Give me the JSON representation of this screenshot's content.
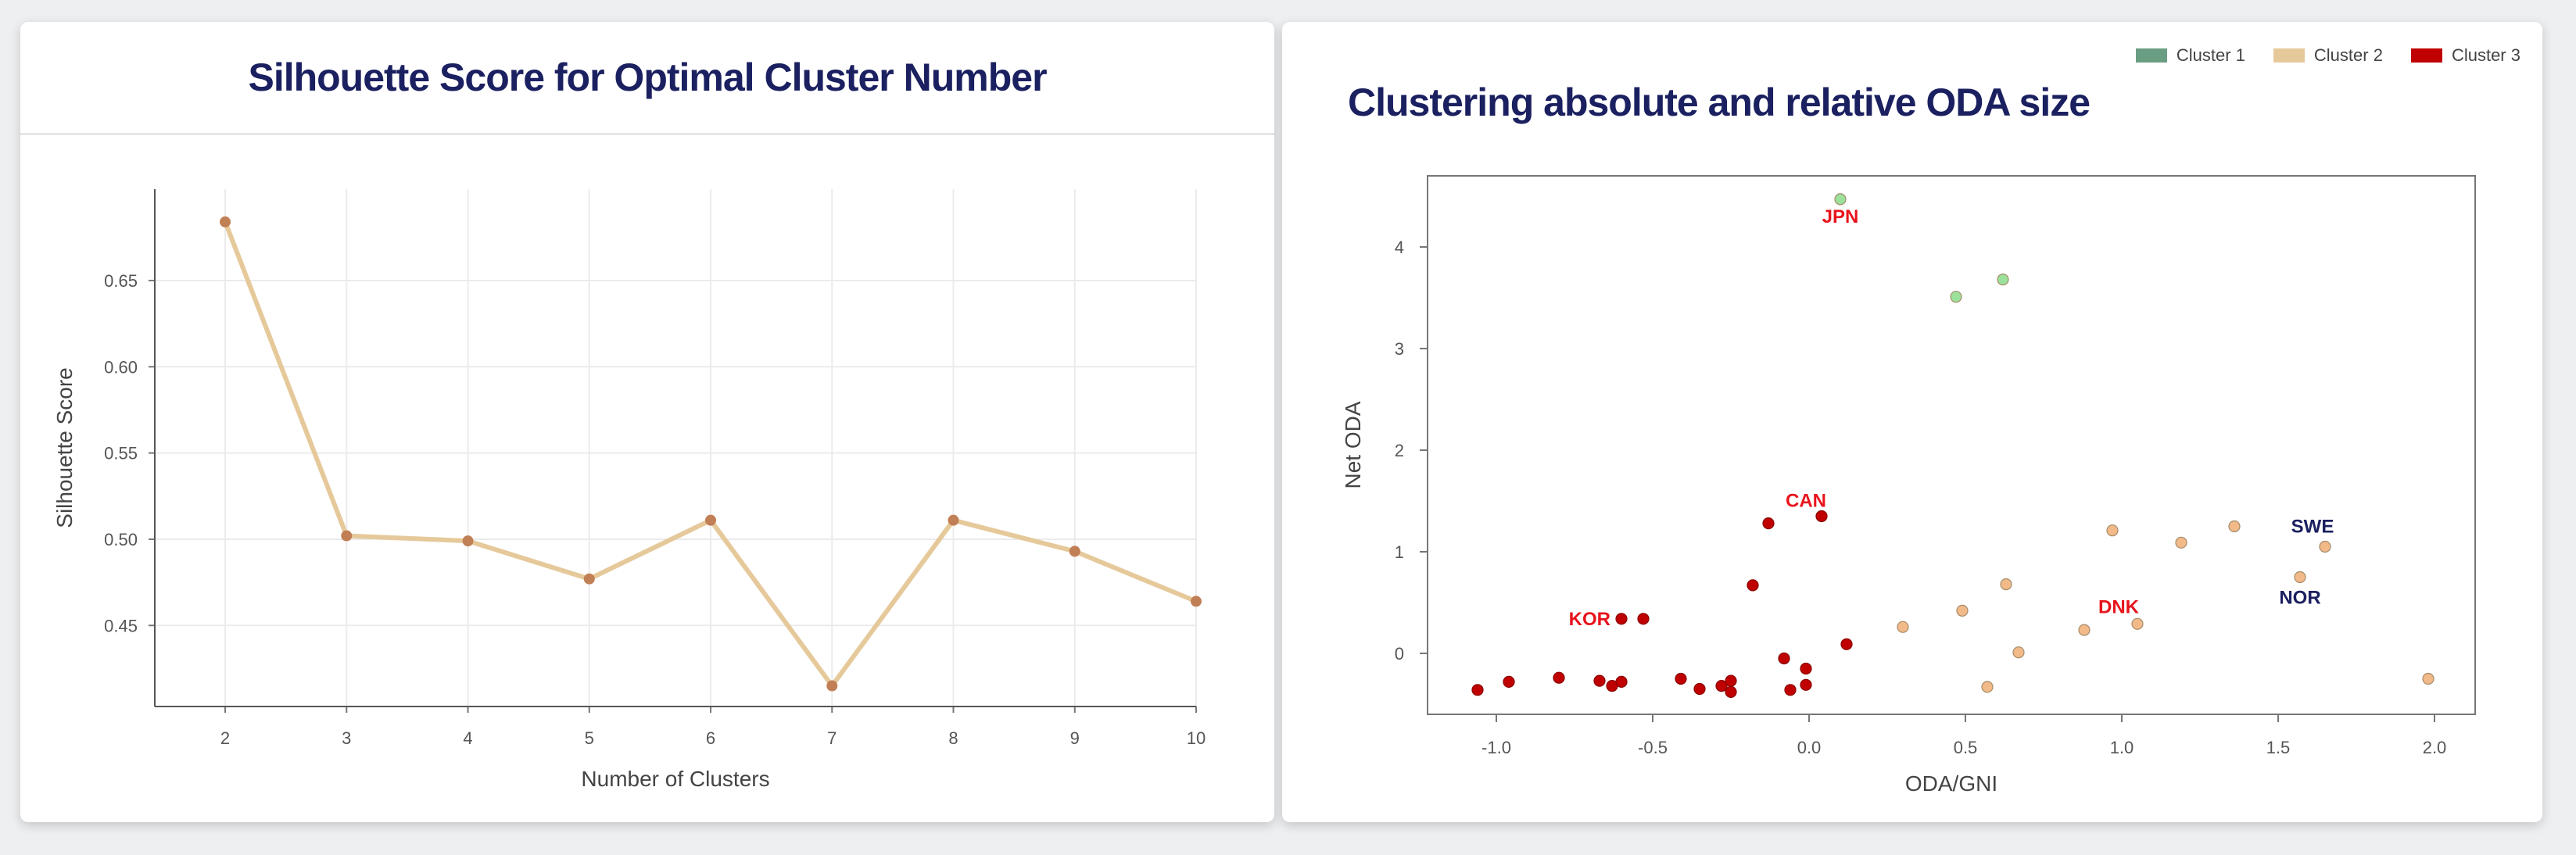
{
  "left_panel": {
    "title": "Silhouette Score for Optimal Cluster Number"
  },
  "right_panel": {
    "title": "Clustering absolute and relative ODA size"
  },
  "chart_data": [
    {
      "type": "line",
      "title": "Silhouette Score for Optimal Cluster Number",
      "xlabel": "Number of Clusters",
      "ylabel": "Silhouette Score",
      "x": [
        2,
        3,
        4,
        5,
        6,
        7,
        8,
        9,
        10
      ],
      "y": [
        0.684,
        0.502,
        0.499,
        0.477,
        0.511,
        0.415,
        0.511,
        0.493,
        0.464
      ],
      "xlim": [
        1.42,
        10.0
      ],
      "ylim": [
        0.403,
        0.703
      ],
      "xticks": [
        "2",
        "3",
        "4",
        "5",
        "6",
        "7",
        "8",
        "9",
        "10"
      ],
      "yticks": [
        "0.45",
        "0.50",
        "0.55",
        "0.60",
        "0.65"
      ],
      "ytick_values": [
        0.45,
        0.5,
        0.55,
        0.6,
        0.65
      ],
      "grid": true,
      "line_color": "#e6c99a",
      "marker_color": "#c17f55"
    },
    {
      "type": "scatter",
      "title": "Clustering absolute and relative ODA size",
      "xlabel": "ODA/GNI",
      "ylabel": "Net ODA",
      "xlim": [
        -1.22,
        2.13
      ],
      "ylim": [
        -0.6,
        4.7
      ],
      "xticks": [
        "-1.0",
        "-0.5",
        "0.0",
        "0.5",
        "1.0",
        "1.5",
        "2.0"
      ],
      "xtick_values": [
        -1.0,
        -0.5,
        0.0,
        0.5,
        1.0,
        1.5,
        2.0
      ],
      "yticks": [
        "0",
        "1",
        "2",
        "3",
        "4"
      ],
      "ytick_values": [
        0,
        1,
        2,
        3,
        4
      ],
      "legend_position": "top-right",
      "series": [
        {
          "name": "Cluster 1",
          "legend_color": "#6a9e82",
          "point_color": "#9be09b",
          "points": [
            [
              0.1,
              4.47
            ],
            [
              0.47,
              3.51
            ],
            [
              0.62,
              3.68
            ]
          ]
        },
        {
          "name": "Cluster 2",
          "legend_color": "#e6c99a",
          "point_color": "#f2b989",
          "points": [
            [
              0.3,
              0.26
            ],
            [
              0.49,
              0.42
            ],
            [
              0.57,
              -0.33
            ],
            [
              0.63,
              0.68
            ],
            [
              0.67,
              0.01
            ],
            [
              0.88,
              0.23
            ],
            [
              0.97,
              1.21
            ],
            [
              1.05,
              0.29
            ],
            [
              1.19,
              1.09
            ],
            [
              1.36,
              1.25
            ],
            [
              1.57,
              0.75
            ],
            [
              1.65,
              1.05
            ],
            [
              1.98,
              -0.25
            ]
          ]
        },
        {
          "name": "Cluster 3",
          "legend_color": "#c00000",
          "point_color": "#c00000",
          "points": [
            [
              -1.06,
              -0.36
            ],
            [
              -0.96,
              -0.28
            ],
            [
              -0.8,
              -0.24
            ],
            [
              -0.67,
              -0.27
            ],
            [
              -0.63,
              -0.32
            ],
            [
              -0.6,
              -0.28
            ],
            [
              -0.6,
              0.34
            ],
            [
              -0.53,
              0.34
            ],
            [
              -0.41,
              -0.25
            ],
            [
              -0.35,
              -0.35
            ],
            [
              -0.28,
              -0.32
            ],
            [
              -0.25,
              -0.27
            ],
            [
              -0.25,
              -0.38
            ],
            [
              -0.18,
              0.67
            ],
            [
              -0.13,
              1.28
            ],
            [
              -0.08,
              -0.05
            ],
            [
              -0.06,
              -0.36
            ],
            [
              -0.01,
              -0.15
            ],
            [
              -0.01,
              -0.31
            ],
            [
              0.04,
              1.35
            ],
            [
              0.12,
              0.09
            ]
          ]
        }
      ],
      "annotations": [
        {
          "text": "JPN",
          "x": 0.1,
          "y": 4.47,
          "color": "#e8141c"
        },
        {
          "text": "CAN",
          "x": 0.04,
          "y": 1.35,
          "color": "#e8141c"
        },
        {
          "text": "KOR",
          "x": -0.6,
          "y": 0.34,
          "color": "#e8141c"
        },
        {
          "text": "DNK",
          "x": 1.05,
          "y": 0.29,
          "color": "#e8141c"
        },
        {
          "text": "SWE",
          "x": 1.65,
          "y": 1.05,
          "color": "#1b2060"
        },
        {
          "text": "NOR",
          "x": 1.57,
          "y": 0.75,
          "color": "#1b2060"
        }
      ]
    }
  ]
}
